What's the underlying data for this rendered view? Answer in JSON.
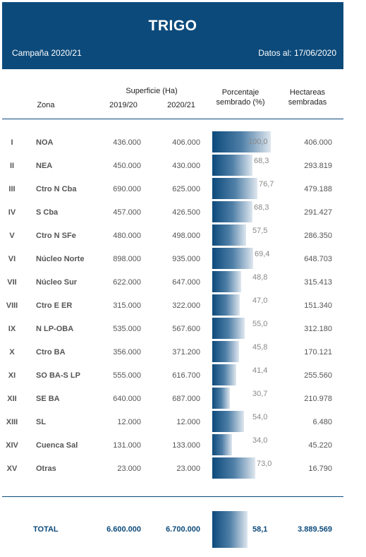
{
  "header": {
    "title": "TRIGO",
    "campaign": "Campaña 2020/21",
    "date_info": "Datos al: 17/06/2020"
  },
  "columns": {
    "superficie": "Superficie (Ha)",
    "zona": "Zona",
    "year1": "2019/20",
    "year2": "2020/21",
    "porcentaje": "Porcentaje\nsembrado (%)",
    "hectareas": "Hectareas\nsembradas"
  },
  "colors": {
    "header_bg": "#0c4a7b",
    "bar_dark": "#0c4a7b",
    "bar_light": "#dfe7ef"
  },
  "rows": [
    {
      "num": "I",
      "zone": "NOA",
      "s1920": "436.000",
      "s2021": "406.000",
      "pct_label": "100,0",
      "pct": 100.0,
      "hectareas": "406.000"
    },
    {
      "num": "II",
      "zone": "NEA",
      "s1920": "450.000",
      "s2021": "430.000",
      "pct_label": "68,3",
      "pct": 68.3,
      "hectareas": "293.819"
    },
    {
      "num": "III",
      "zone": "Ctro N Cba",
      "s1920": "690.000",
      "s2021": "625.000",
      "pct_label": "76,7",
      "pct": 76.7,
      "hectareas": "479.188"
    },
    {
      "num": "IV",
      "zone": "S Cba",
      "s1920": "457.000",
      "s2021": "426.500",
      "pct_label": "68,3",
      "pct": 68.3,
      "hectareas": "291.427"
    },
    {
      "num": "V",
      "zone": "Ctro N SFe",
      "s1920": "480.000",
      "s2021": "498.000",
      "pct_label": "57,5",
      "pct": 57.5,
      "hectareas": "286.350"
    },
    {
      "num": "VI",
      "zone": "Núcleo Norte",
      "s1920": "898.000",
      "s2021": "935.000",
      "pct_label": "69,4",
      "pct": 69.4,
      "hectareas": "648.703"
    },
    {
      "num": "VII",
      "zone": "Núcleo Sur",
      "s1920": "622.000",
      "s2021": "647.000",
      "pct_label": "48,8",
      "pct": 48.8,
      "hectareas": "315.413"
    },
    {
      "num": "VIII",
      "zone": "Ctro E ER",
      "s1920": "315.000",
      "s2021": "322.000",
      "pct_label": "47,0",
      "pct": 47.0,
      "hectareas": "151.340"
    },
    {
      "num": "IX",
      "zone": "N LP-OBA",
      "s1920": "535.000",
      "s2021": "567.600",
      "pct_label": "55,0",
      "pct": 55.0,
      "hectareas": "312.180"
    },
    {
      "num": "X",
      "zone": "Ctro BA",
      "s1920": "356.000",
      "s2021": "371.200",
      "pct_label": "45,8",
      "pct": 45.8,
      "hectareas": "170.121"
    },
    {
      "num": "XI",
      "zone": "SO BA-S LP",
      "s1920": "555.000",
      "s2021": "616.700",
      "pct_label": "41,4",
      "pct": 41.4,
      "hectareas": "255.560"
    },
    {
      "num": "XII",
      "zone": "SE BA",
      "s1920": "640.000",
      "s2021": "687.000",
      "pct_label": "30,7",
      "pct": 30.7,
      "hectareas": "210.978"
    },
    {
      "num": "XIII",
      "zone": "SL",
      "s1920": "12.000",
      "s2021": "12.000",
      "pct_label": "54,0",
      "pct": 54.0,
      "hectareas": "6.480"
    },
    {
      "num": "XIV",
      "zone": "Cuenca Sal",
      "s1920": "131.000",
      "s2021": "133.000",
      "pct_label": "34,0",
      "pct": 34.0,
      "hectareas": "45.220"
    },
    {
      "num": "XV",
      "zone": "Otras",
      "s1920": "23.000",
      "s2021": "23.000",
      "pct_label": "73,0",
      "pct": 73.0,
      "hectareas": "16.790"
    }
  ],
  "total": {
    "label": "TOTAL",
    "s1920": "6.600.000",
    "s2021": "6.700.000",
    "pct_label": "58,1",
    "pct": 58.1,
    "hectareas": "3.889.569"
  }
}
